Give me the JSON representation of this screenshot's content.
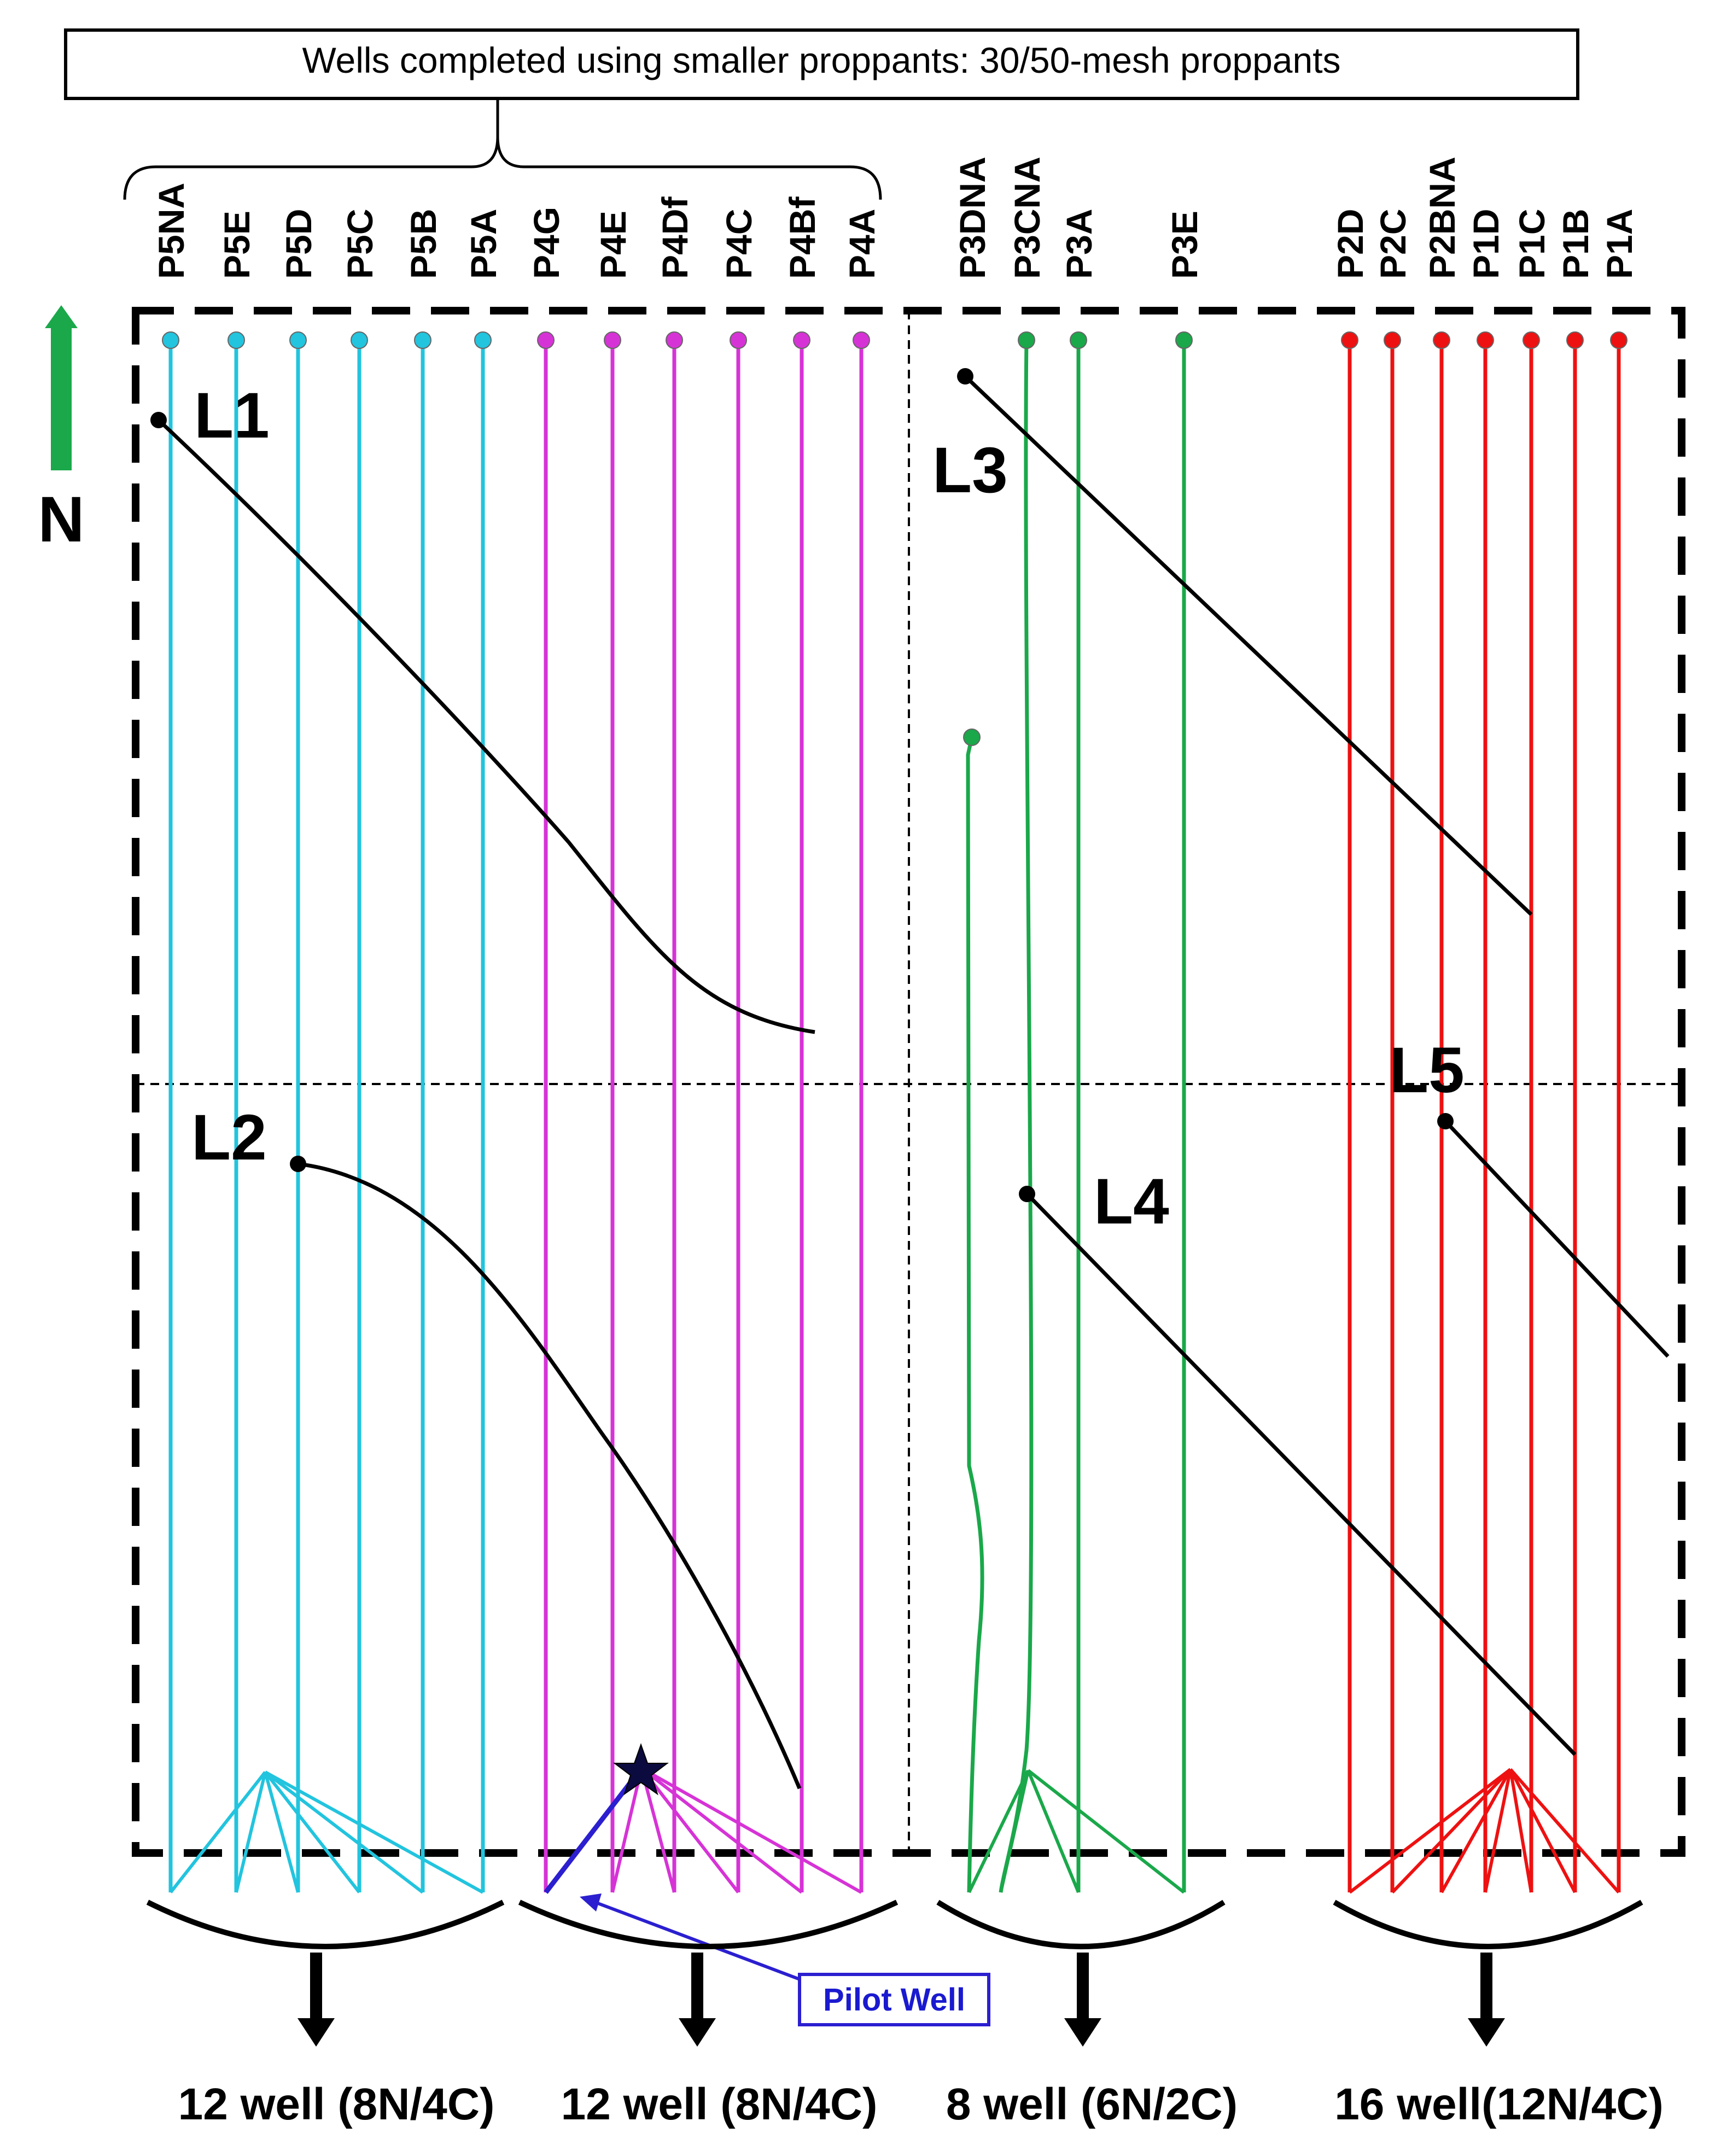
{
  "header": {
    "title": "Wells completed using smaller proppants: 30/50-mesh proppants"
  },
  "north": {
    "label": "N"
  },
  "colors": {
    "pad5": "#22c4de",
    "pad4": "#d633d6",
    "pad3": "#1aa84a",
    "pad1_2": "#ee1111",
    "pilot": "#2b1fd0",
    "lineament": "#000000",
    "border": "#000000"
  },
  "wells": [
    {
      "name": "P5NA",
      "pad": "pad5"
    },
    {
      "name": "P5E",
      "pad": "pad5"
    },
    {
      "name": "P5D",
      "pad": "pad5"
    },
    {
      "name": "P5C",
      "pad": "pad5"
    },
    {
      "name": "P5B",
      "pad": "pad5"
    },
    {
      "name": "P5A",
      "pad": "pad5"
    },
    {
      "name": "P4G",
      "pad": "pad4"
    },
    {
      "name": "P4E",
      "pad": "pad4"
    },
    {
      "name": "P4Df",
      "pad": "pad4"
    },
    {
      "name": "P4C",
      "pad": "pad4"
    },
    {
      "name": "P4Bf",
      "pad": "pad4"
    },
    {
      "name": "P4A",
      "pad": "pad4"
    },
    {
      "name": "P3DNA",
      "pad": "pad3"
    },
    {
      "name": "P3CNA",
      "pad": "pad3"
    },
    {
      "name": "P3A",
      "pad": "pad3"
    },
    {
      "name": "P3E",
      "pad": "pad3"
    },
    {
      "name": "P2D",
      "pad": "pad1_2"
    },
    {
      "name": "P2C",
      "pad": "pad1_2"
    },
    {
      "name": "P2BNA",
      "pad": "pad1_2"
    },
    {
      "name": "P1D",
      "pad": "pad1_2"
    },
    {
      "name": "P1C",
      "pad": "pad1_2"
    },
    {
      "name": "P1B",
      "pad": "pad1_2"
    },
    {
      "name": "P1A",
      "pad": "pad1_2"
    }
  ],
  "lineaments": [
    {
      "label": "L1"
    },
    {
      "label": "L2"
    },
    {
      "label": "L3"
    },
    {
      "label": "L4"
    },
    {
      "label": "L5"
    }
  ],
  "pilot": {
    "label": "Pilot Well"
  },
  "pads": [
    {
      "summary": "12 well (8N/4C)"
    },
    {
      "summary": "12 well (8N/4C)"
    },
    {
      "summary": "8 well (6N/2C)"
    },
    {
      "summary": "16 well(12N/4C)"
    }
  ]
}
